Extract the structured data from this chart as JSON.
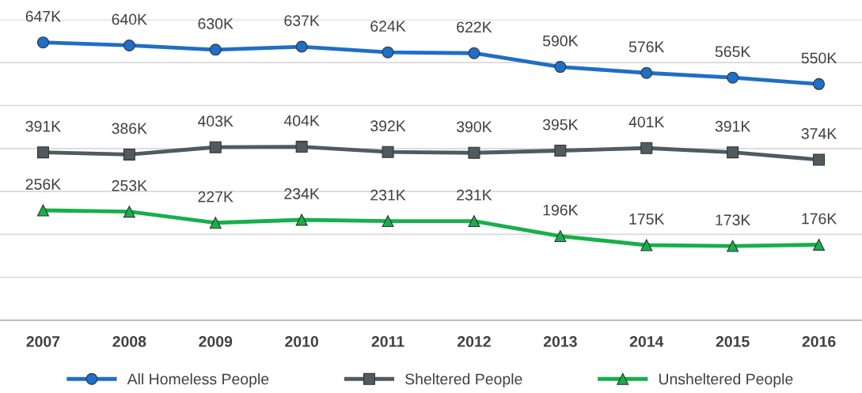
{
  "chart_data": {
    "type": "line",
    "categories": [
      "2007",
      "2008",
      "2009",
      "2010",
      "2011",
      "2012",
      "2013",
      "2014",
      "2015",
      "2016"
    ],
    "series": [
      {
        "name": "All Homeless People",
        "color": "#1f6ec7",
        "marker": "circle",
        "values": [
          647,
          640,
          630,
          637,
          624,
          622,
          590,
          576,
          565,
          550
        ],
        "value_labels": [
          "647K",
          "640K",
          "630K",
          "637K",
          "624K",
          "622K",
          "590K",
          "576K",
          "565K",
          "550K"
        ]
      },
      {
        "name": "Sheltered People",
        "color": "#4f5b60",
        "marker": "square",
        "values": [
          391,
          386,
          403,
          404,
          392,
          390,
          395,
          401,
          391,
          374
        ],
        "value_labels": [
          "391K",
          "386K",
          "403K",
          "404K",
          "392K",
          "390K",
          "395K",
          "401K",
          "391K",
          "374K"
        ]
      },
      {
        "name": "Unsheltered People",
        "color": "#16b04a",
        "marker": "triangle",
        "values": [
          256,
          253,
          227,
          234,
          231,
          231,
          196,
          175,
          173,
          176
        ],
        "value_labels": [
          "256K",
          "253K",
          "227K",
          "234K",
          "231K",
          "231K",
          "196K",
          "175K",
          "173K",
          "176K"
        ]
      }
    ],
    "ylim": [
      0,
      700
    ],
    "yticks": [
      {
        "value": 0,
        "label": null
      },
      {
        "value": 100,
        "label": null
      },
      {
        "value": 200,
        "label": null
      },
      {
        "value": 300,
        "label": null
      },
      {
        "value": 400,
        "label": null
      },
      {
        "value": 500,
        "label": null
      },
      {
        "value": 600,
        "label": null
      },
      {
        "value": 700,
        "label": null
      }
    ],
    "grid": "y",
    "legend": "bottom",
    "tick_labels": "x",
    "line_style": "solid"
  }
}
